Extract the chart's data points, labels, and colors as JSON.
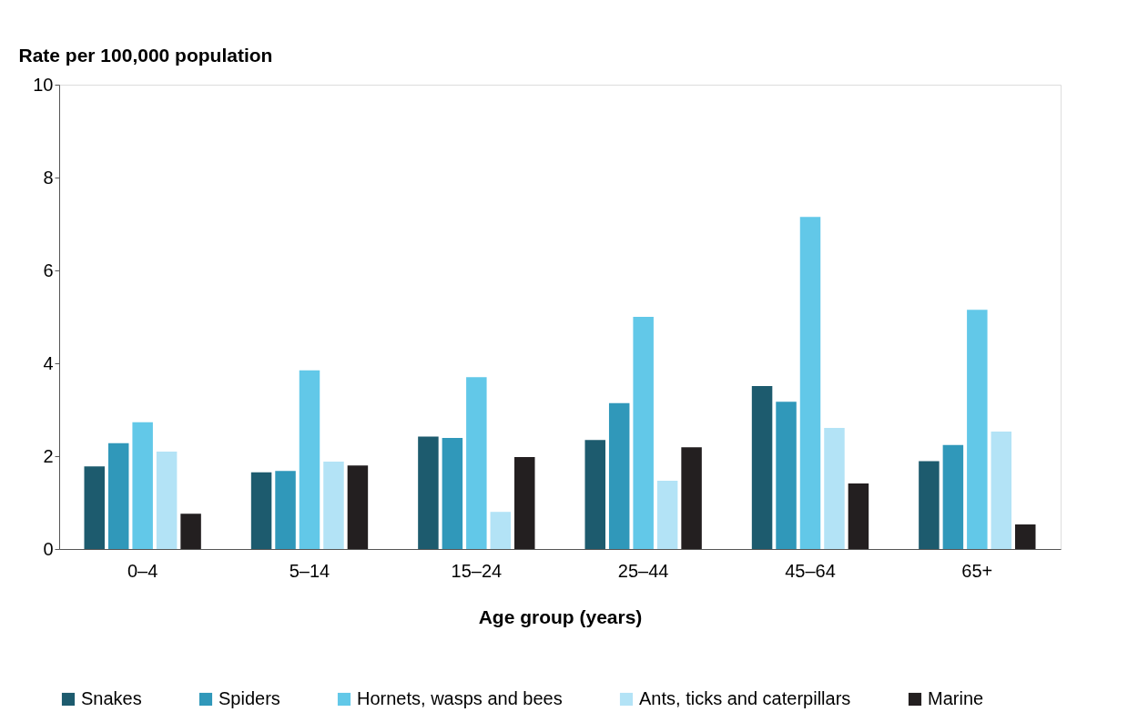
{
  "chart_data": {
    "type": "bar",
    "ylabel": "Rate per 100,000 population",
    "xlabel": "Age group (years)",
    "categories": [
      "0–4",
      "5–14",
      "15–24",
      "25–44",
      "45–64",
      "65+"
    ],
    "series": [
      {
        "name": "Snakes",
        "color": "#1d5b6e",
        "values": [
          1.78,
          1.65,
          2.42,
          2.35,
          3.51,
          1.89
        ]
      },
      {
        "name": "Spiders",
        "color": "#3098ba",
        "values": [
          2.28,
          1.68,
          2.39,
          3.14,
          3.17,
          2.24
        ]
      },
      {
        "name": "Hornets, wasps and bees",
        "color": "#62c8e8",
        "values": [
          2.73,
          3.85,
          3.7,
          5.0,
          7.15,
          5.15
        ]
      },
      {
        "name": "Ants, ticks and caterpillars",
        "color": "#b3e3f6",
        "values": [
          2.1,
          1.88,
          0.8,
          1.47,
          2.61,
          2.53
        ]
      },
      {
        "name": "Marine",
        "color": "#231f20",
        "values": [
          0.76,
          1.8,
          1.98,
          2.19,
          1.41,
          0.53
        ]
      }
    ],
    "ylim": [
      0,
      10
    ],
    "yticks": [
      0,
      2,
      4,
      6,
      8,
      10
    ],
    "grid": false,
    "legend": "bottom"
  }
}
